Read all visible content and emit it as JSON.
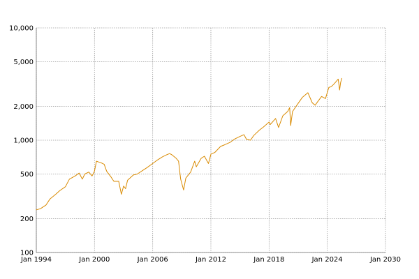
{
  "chart_data": {
    "type": "line",
    "title": "",
    "xlabel": "",
    "ylabel": "",
    "x_scale": "time",
    "y_scale": "log",
    "xlim": [
      "1994-01-01",
      "2030-01-01"
    ],
    "ylim": [
      100,
      10000
    ],
    "grid": true,
    "legend": "none",
    "x_ticks": [
      {
        "value": "1994-01-01",
        "label": "Jan 1994"
      },
      {
        "value": "2000-01-01",
        "label": "Jan 2000"
      },
      {
        "value": "2006-01-01",
        "label": "Jan 2006"
      },
      {
        "value": "2012-01-01",
        "label": "Jan 2012"
      },
      {
        "value": "2018-01-01",
        "label": "Jan 2018"
      },
      {
        "value": "2024-01-01",
        "label": "Jan 2024"
      },
      {
        "value": "2030-01-01",
        "label": "Jan 2030"
      }
    ],
    "y_ticks": [
      {
        "value": 100,
        "label": "100"
      },
      {
        "value": 200,
        "label": "200"
      },
      {
        "value": 500,
        "label": "500"
      },
      {
        "value": 1000,
        "label": "1,000"
      },
      {
        "value": 2000,
        "label": "2,000"
      },
      {
        "value": 5000,
        "label": "5,000"
      },
      {
        "value": 10000,
        "label": "10,000"
      }
    ],
    "series": [
      {
        "color": "#d98a00",
        "x": [
          "1994-01-01",
          "1994-06-01",
          "1995-01-01",
          "1995-06-01",
          "1996-01-01",
          "1996-06-01",
          "1997-01-01",
          "1997-06-01",
          "1998-01-01",
          "1998-06-01",
          "1998-10-01",
          "1999-01-01",
          "1999-06-01",
          "1999-10-01",
          "2000-01-01",
          "2000-03-15",
          "2000-06-01",
          "2000-09-01",
          "2001-01-01",
          "2001-04-01",
          "2001-09-15",
          "2002-01-01",
          "2002-07-01",
          "2002-10-10",
          "2003-01-01",
          "2003-03-15",
          "2003-06-01",
          "2004-01-01",
          "2004-06-01",
          "2005-01-01",
          "2005-06-01",
          "2006-01-01",
          "2006-06-01",
          "2007-01-01",
          "2007-06-01",
          "2007-10-01",
          "2008-01-01",
          "2008-06-01",
          "2008-09-01",
          "2008-11-20",
          "2009-03-09",
          "2009-06-01",
          "2009-12-01",
          "2010-05-01",
          "2010-07-01",
          "2011-01-01",
          "2011-05-01",
          "2011-10-01",
          "2012-01-01",
          "2012-06-01",
          "2013-01-01",
          "2013-06-01",
          "2014-01-01",
          "2014-06-01",
          "2015-01-01",
          "2015-06-01",
          "2015-09-01",
          "2016-02-01",
          "2016-06-01",
          "2017-01-01",
          "2017-06-01",
          "2018-01-01",
          "2018-02-15",
          "2018-09-01",
          "2018-12-24",
          "2019-06-01",
          "2019-12-01",
          "2020-02-15",
          "2020-03-23",
          "2020-06-01",
          "2020-12-01",
          "2021-06-01",
          "2022-01-01",
          "2022-06-15",
          "2022-10-01",
          "2023-01-01",
          "2023-06-01",
          "2023-10-25",
          "2024-01-01",
          "2024-03-01",
          "2024-06-01",
          "2024-09-01",
          "2025-01-01",
          "2025-02-15",
          "2025-04-08",
          "2025-05-15",
          "2025-07-01"
        ],
        "values": [
          240,
          245,
          265,
          300,
          330,
          355,
          385,
          450,
          480,
          510,
          450,
          500,
          520,
          480,
          530,
          650,
          640,
          630,
          610,
          530,
          470,
          430,
          430,
          330,
          390,
          370,
          440,
          490,
          500,
          540,
          570,
          620,
          660,
          710,
          740,
          760,
          740,
          690,
          650,
          450,
          360,
          460,
          520,
          650,
          580,
          690,
          720,
          620,
          750,
          780,
          880,
          910,
          960,
          1020,
          1080,
          1120,
          1020,
          1000,
          1100,
          1230,
          1310,
          1450,
          1380,
          1560,
          1300,
          1650,
          1800,
          1950,
          1350,
          1800,
          2080,
          2400,
          2650,
          2150,
          2050,
          2200,
          2450,
          2350,
          2650,
          2950,
          3000,
          3150,
          3400,
          3500,
          2800,
          3250,
          3550
        ]
      }
    ]
  }
}
